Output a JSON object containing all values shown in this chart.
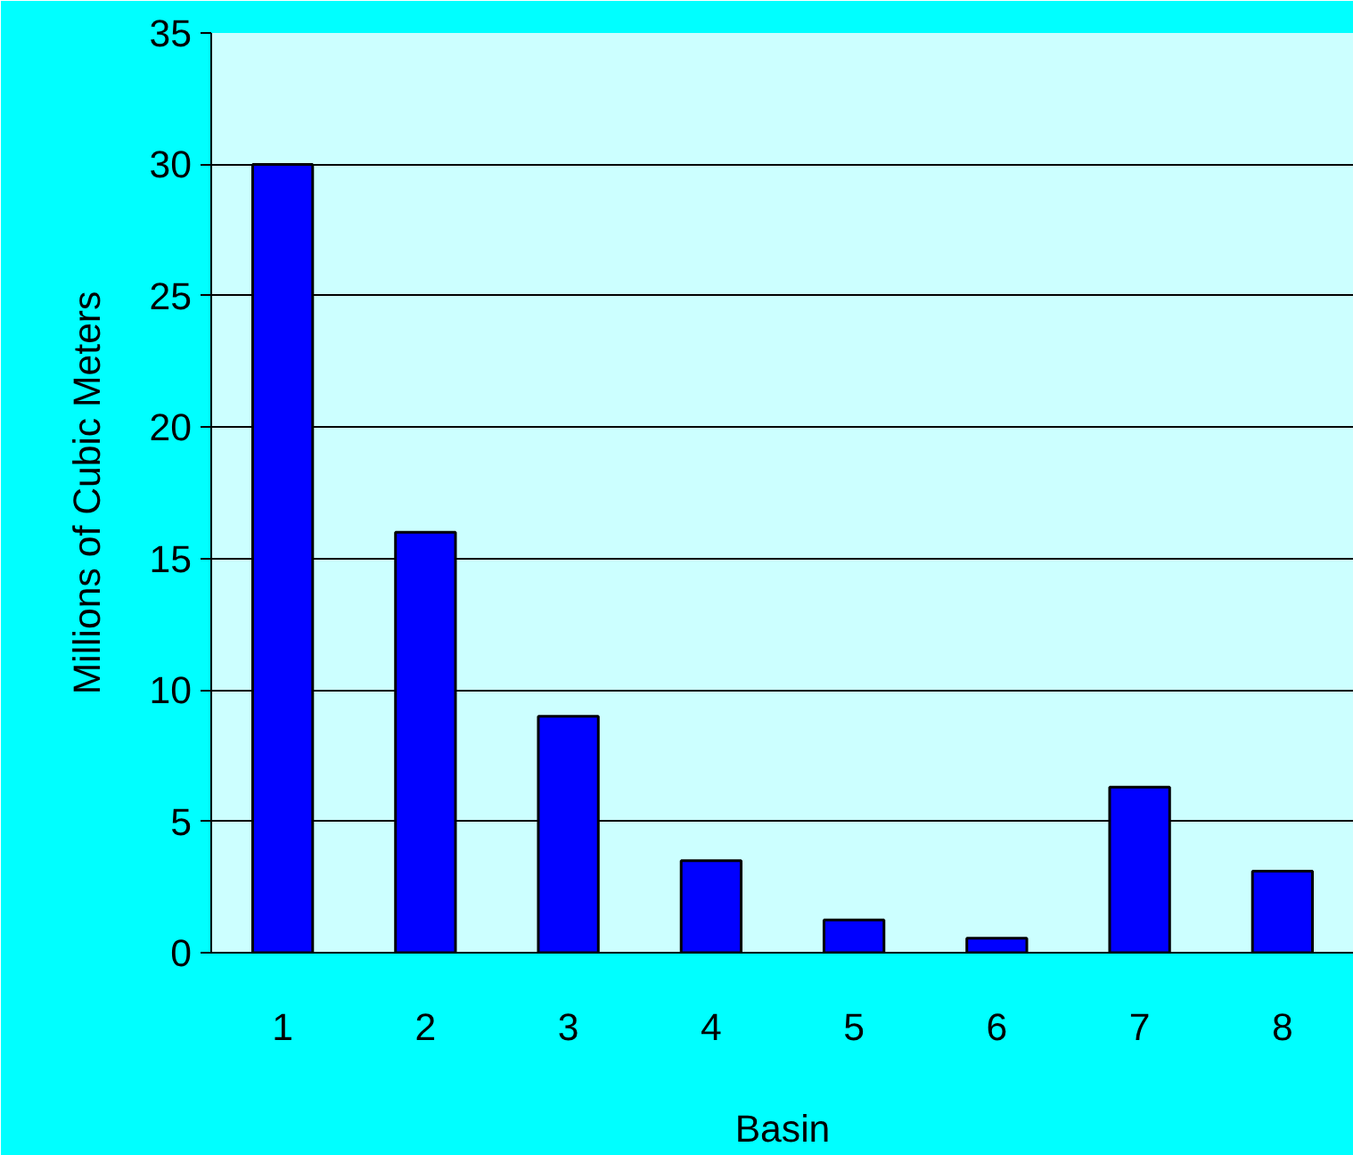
{
  "chart_data": {
    "type": "bar",
    "xlabel": "Basin",
    "ylabel": "Millions of Cubic Meters",
    "categories": [
      "1",
      "2",
      "3",
      "4",
      "5",
      "6",
      "7",
      "8"
    ],
    "values": [
      30,
      16,
      9,
      3.5,
      1.25,
      0.55,
      6.3,
      3.1
    ],
    "color": "#0000ff",
    "ylim": [
      0,
      35
    ],
    "yticks": [
      0,
      5,
      10,
      15,
      20,
      25,
      30,
      35
    ],
    "grid": "y"
  }
}
